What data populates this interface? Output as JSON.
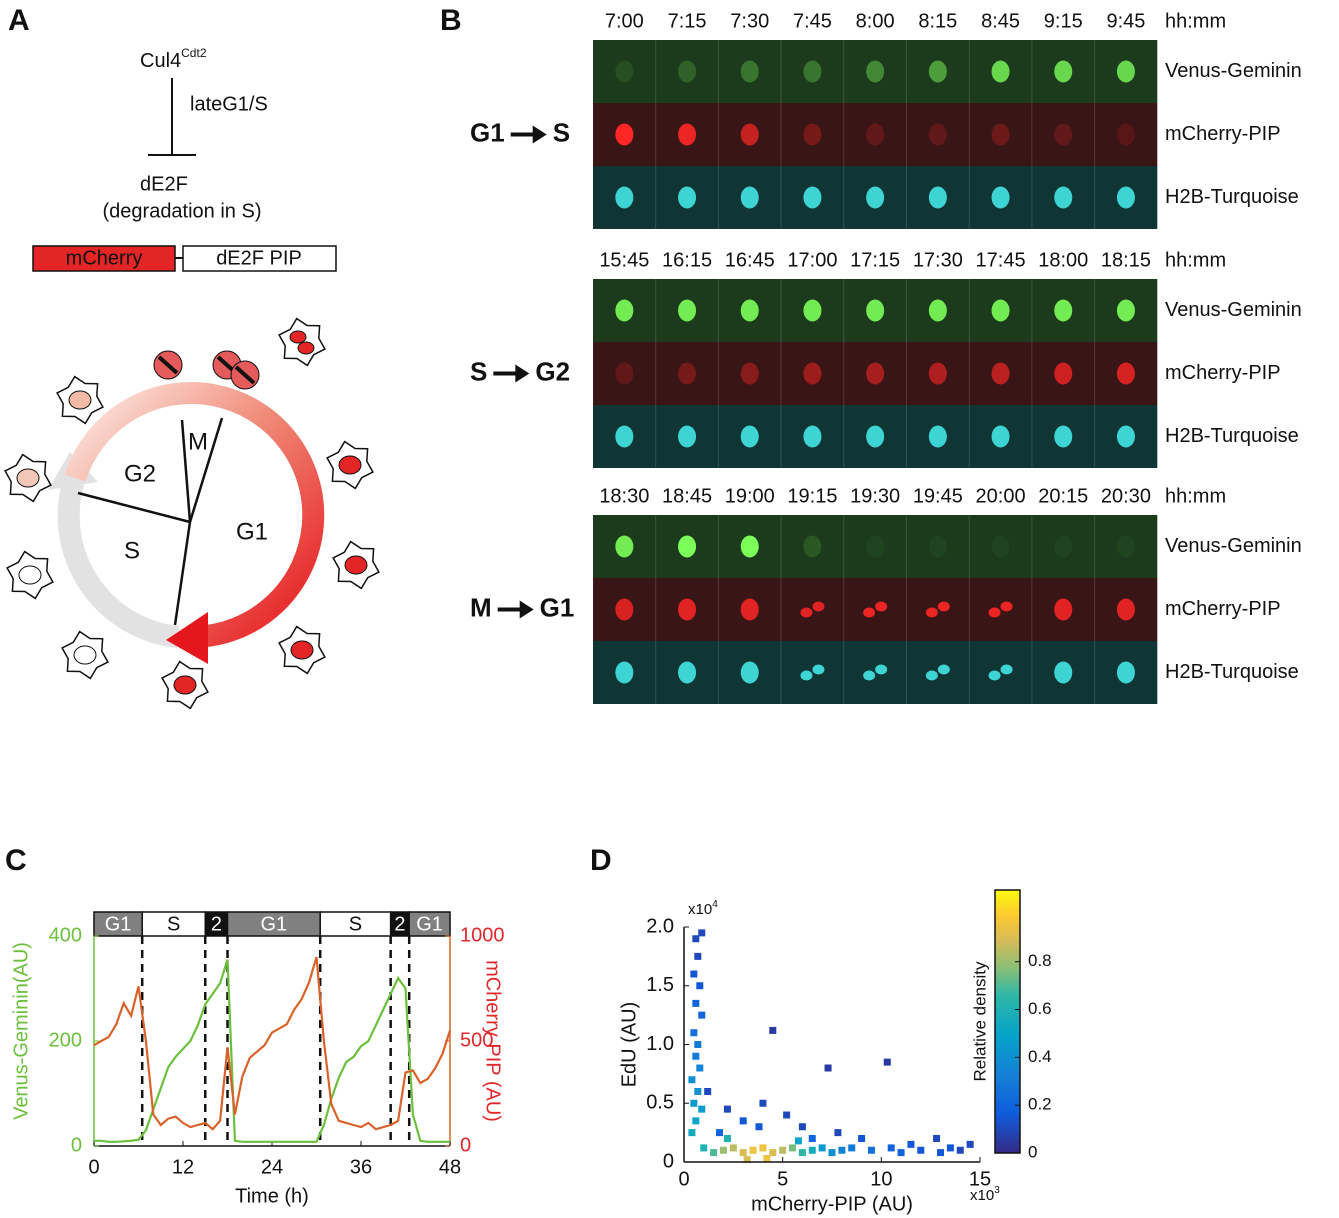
{
  "panels": [
    "A",
    "B",
    "C",
    "D"
  ],
  "diagram": {
    "enzyme": "Cul4",
    "enzyme_sup": "Cdt2",
    "regulation": "lateG1/S",
    "target": "dE2F",
    "target_note": "(degradation in S)",
    "construct": [
      "mCherry",
      "dE2F PIP"
    ],
    "phases": [
      "G2",
      "M",
      "S",
      "G1"
    ]
  },
  "timelapse": {
    "time_unit": "hh:mm",
    "channels": [
      "Venus-Geminin",
      "mCherry-PIP",
      "H2B-Turquoise"
    ],
    "blocks": [
      {
        "from": "G1",
        "to": "S",
        "times": [
          "7:00",
          "7:15",
          "7:30",
          "7:45",
          "8:00",
          "8:15",
          "8:45",
          "9:15",
          "9:45"
        ]
      },
      {
        "from": "S",
        "to": "G2",
        "times": [
          "15:45",
          "16:15",
          "16:45",
          "17:00",
          "17:15",
          "17:30",
          "17:45",
          "18:00",
          "18:15"
        ]
      },
      {
        "from": "M",
        "to": "G1",
        "times": [
          "18:30",
          "18:45",
          "19:00",
          "19:15",
          "19:30",
          "19:45",
          "20:00",
          "20:15",
          "20:30"
        ]
      }
    ]
  },
  "chart_data": [
    {
      "type": "line",
      "xlabel": "Time (h)",
      "ylabel": "Venus-Geminin(AU)",
      "y2label": "mCherry-PIP (AU)",
      "x": [
        0,
        1,
        2,
        3,
        4,
        5,
        6,
        7,
        8,
        9,
        10,
        11,
        12,
        13,
        14,
        15,
        16,
        17,
        18,
        19,
        20,
        21,
        22,
        23,
        24,
        25,
        26,
        27,
        28,
        29,
        30,
        31,
        32,
        33,
        34,
        35,
        36,
        37,
        38,
        39,
        40,
        41,
        42,
        43,
        44,
        45,
        46,
        47,
        48
      ],
      "xlim": [
        0,
        48
      ],
      "xticks": [
        0,
        12,
        24,
        36,
        48
      ],
      "ylim": [
        0,
        400
      ],
      "yticks": [
        0,
        200,
        400
      ],
      "y2lim": [
        0,
        1000
      ],
      "y2ticks": [
        0,
        500,
        1000
      ],
      "series": [
        {
          "color": "#6cbf3c",
          "axis": "y",
          "values": [
            10,
            10,
            8,
            8,
            9,
            10,
            12,
            30,
            70,
            110,
            150,
            170,
            185,
            200,
            230,
            270,
            290,
            310,
            355,
            10,
            8,
            8,
            8,
            8,
            8,
            8,
            8,
            8,
            8,
            8,
            8,
            40,
            90,
            130,
            160,
            170,
            190,
            200,
            230,
            260,
            290,
            320,
            300,
            60,
            10,
            8,
            8,
            8,
            8
          ]
        },
        {
          "color": "#d9622b",
          "axis": "y2",
          "values": [
            480,
            500,
            520,
            580,
            680,
            620,
            760,
            500,
            150,
            100,
            130,
            140,
            110,
            90,
            100,
            110,
            80,
            120,
            470,
            150,
            330,
            420,
            450,
            480,
            540,
            560,
            580,
            650,
            700,
            780,
            900,
            500,
            200,
            120,
            110,
            100,
            90,
            110,
            80,
            90,
            100,
            120,
            350,
            360,
            300,
            320,
            370,
            440,
            550
          ]
        }
      ],
      "phase_labels": [
        "G1",
        "S",
        "2",
        "G1",
        "S",
        "2",
        "G1"
      ],
      "phase_bounds": [
        0,
        6.5,
        15,
        18,
        30.5,
        40,
        42.5,
        48
      ],
      "phase_colors": [
        "#808080",
        "#ffffff",
        "#111111",
        "#808080",
        "#ffffff",
        "#111111",
        "#808080"
      ]
    },
    {
      "type": "scatter",
      "xlabel": "mCherry-PIP (AU)",
      "ylabel": "EdU (AU)",
      "x_multiplier": "x10",
      "x_exponent": "3",
      "y_multiplier": "x10",
      "y_exponent": "4",
      "xlim": [
        0,
        15
      ],
      "xticks": [
        0,
        5,
        10,
        15
      ],
      "ylim": [
        0,
        2
      ],
      "yticks": [
        0,
        0.5,
        {
          "value": 1,
          "label": "1.0"
        },
        1.5,
        {
          "value": 2,
          "label": "2.0"
        }
      ],
      "x": [
        0.6,
        0.9,
        0.7,
        0.5,
        0.8,
        0.6,
        0.9,
        0.5,
        0.7,
        0.6,
        0.8,
        0.4,
        0.7,
        0.5,
        0.9,
        0.6,
        0.4,
        1.2,
        2.2,
        3.0,
        4.5,
        3.8,
        5.2,
        6.0,
        7.3,
        7.8,
        10.3,
        9.0,
        11.5,
        12.8,
        13.5,
        14.5,
        1.8,
        4.0,
        6.5,
        1.0,
        1.5,
        2.0,
        2.5,
        3.0,
        3.5,
        4.0,
        4.5,
        5.0,
        5.5,
        6.0,
        6.5,
        7.0,
        7.5,
        8.0,
        8.5,
        9.5,
        10.5,
        11.0,
        12.0,
        13.0,
        14.0,
        3.2,
        4.2,
        2.2,
        5.8
      ],
      "y": [
        1.9,
        1.95,
        1.75,
        1.6,
        1.5,
        1.35,
        1.25,
        1.1,
        1.0,
        0.9,
        0.8,
        0.7,
        0.6,
        0.5,
        0.45,
        0.35,
        0.25,
        0.6,
        0.45,
        0.35,
        1.12,
        0.3,
        0.4,
        0.3,
        0.8,
        0.25,
        0.85,
        0.2,
        0.15,
        0.2,
        0.12,
        0.15,
        0.25,
        0.5,
        0.2,
        0.12,
        0.08,
        0.1,
        0.12,
        0.08,
        0.1,
        0.12,
        0.08,
        0.1,
        0.12,
        0.08,
        0.1,
        0.12,
        0.08,
        0.1,
        0.12,
        0.1,
        0.12,
        0.08,
        0.1,
        0.08,
        0.1,
        0.02,
        0.03,
        0.2,
        0.18
      ],
      "density": [
        0.1,
        0.1,
        0.1,
        0.15,
        0.15,
        0.2,
        0.2,
        0.25,
        0.3,
        0.3,
        0.35,
        0.4,
        0.4,
        0.45,
        0.45,
        0.5,
        0.55,
        0.1,
        0.1,
        0.15,
        0.05,
        0.15,
        0.1,
        0.1,
        0.05,
        0.1,
        0.05,
        0.15,
        0.15,
        0.1,
        0.15,
        0.1,
        0.2,
        0.1,
        0.2,
        0.6,
        0.7,
        0.8,
        0.85,
        0.9,
        0.95,
        0.95,
        0.9,
        0.85,
        0.75,
        0.65,
        0.55,
        0.45,
        0.4,
        0.35,
        0.3,
        0.25,
        0.2,
        0.2,
        0.15,
        0.15,
        0.1,
        0.9,
        0.95,
        0.6,
        0.5
      ],
      "colorbar": {
        "label": "Relative density",
        "lim": [
          0,
          1.1
        ],
        "ticks": [
          0,
          0.2,
          0.4,
          0.6,
          0.8
        ]
      }
    }
  ]
}
